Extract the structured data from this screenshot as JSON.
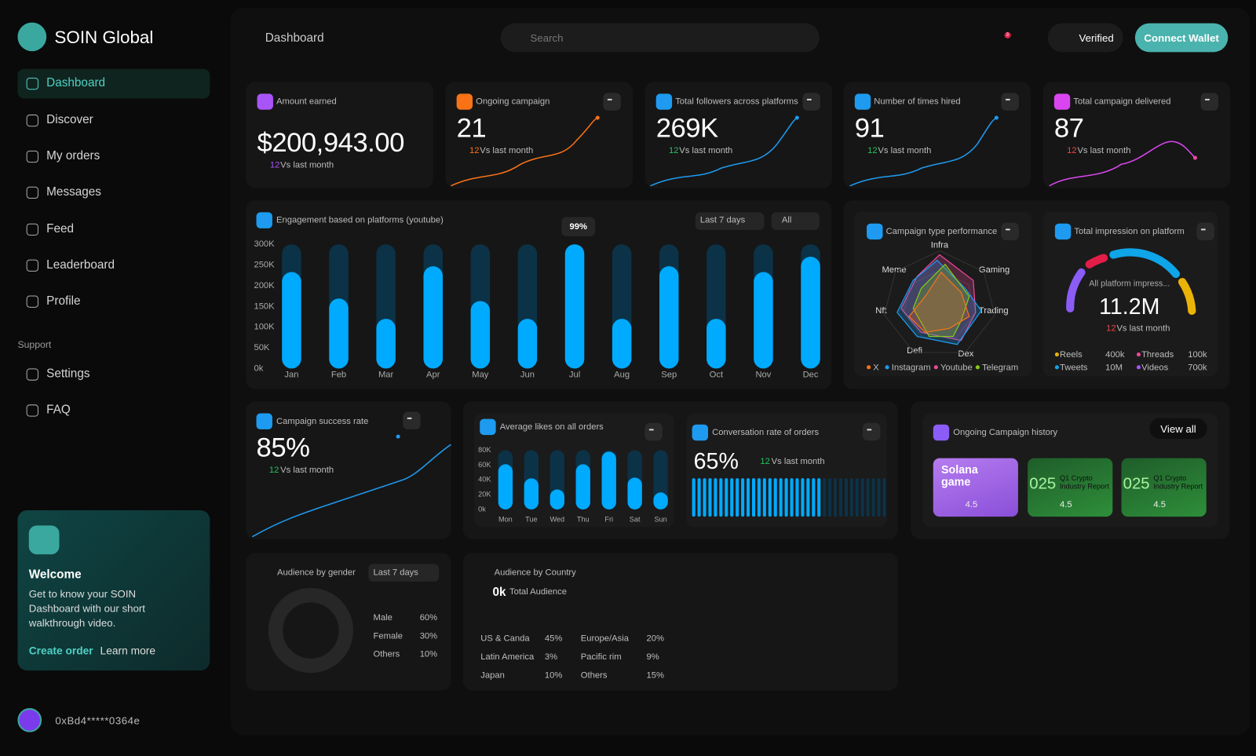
{
  "sidebar": {
    "brand": "SOIN Global",
    "nav": [
      "Dashboard",
      "Discover",
      "My orders",
      "Messages",
      "Feed",
      "Leaderboard",
      "Profile"
    ],
    "support_heading": "Support",
    "support": [
      "Settings",
      "FAQ"
    ],
    "welcome": {
      "title": "Welcome",
      "text": "Get to know your SOIN Dashboard with our short walkthrough video.",
      "primary": "Create order",
      "secondary": "Learn more"
    },
    "wallet": "0xBd4*****0364e"
  },
  "header": {
    "breadcrumb": "Dashboard",
    "search": "Search",
    "notifications": "3",
    "verified": "Verified",
    "connect": "Connect Wallet"
  },
  "stats": [
    {
      "label": "Amount earned",
      "value": "$200,943.00",
      "change": "12",
      "note": "Vs last month"
    },
    {
      "label": "Ongoing campaign",
      "value": "21",
      "change": "12",
      "note": "Vs last month"
    },
    {
      "label": "Total followers across platforms",
      "value": "269K",
      "change": "12",
      "note": "Vs last month"
    },
    {
      "label": "Number of times hired",
      "value": "91",
      "change": "12",
      "note": "Vs last month"
    },
    {
      "label": "Total campaign delivered",
      "value": "87",
      "change": "12",
      "note": "Vs last month"
    }
  ],
  "engagement": {
    "filters": [
      "Last 7 days",
      "All"
    ],
    "tooltip": "99%"
  },
  "chart_data": [
    {
      "type": "bar",
      "title": "Engagement based on platforms (youtube)",
      "color": "#00aaff",
      "track_color": "#0c3247",
      "categories": [
        "Jan",
        "Feb",
        "Mar",
        "Apr",
        "May",
        "Jun",
        "Jul",
        "Aug",
        "Sep",
        "Oct",
        "Nov",
        "Dec"
      ],
      "values": [
        233000,
        169000,
        120000,
        247000,
        163000,
        120000,
        300000,
        120000,
        247000,
        120000,
        233000,
        270000
      ],
      "ylim": [
        0,
        300000
      ],
      "yticks": [
        {
          "value": 0,
          "label": "0k"
        },
        {
          "value": 50000,
          "label": "50K"
        },
        {
          "value": 100000,
          "label": "100K"
        },
        {
          "value": 150000,
          "label": "150K"
        },
        {
          "value": 200000,
          "label": "200K"
        },
        {
          "value": 250000,
          "label": "250K"
        },
        {
          "value": 300000,
          "label": "300K"
        }
      ]
    },
    {
      "type": "bar",
      "title": "Average likes on all orders",
      "color": "#00aaff",
      "track_color": "#0c3247",
      "categories": [
        "Mon",
        "Tue",
        "Wed",
        "Thu",
        "Fri",
        "Sat",
        "Sun"
      ],
      "values": [
        61000,
        42000,
        27000,
        61000,
        78000,
        43000,
        23000
      ],
      "ylim": [
        0,
        80000
      ],
      "yticks": [
        {
          "value": 0,
          "label": "0k"
        },
        {
          "value": 20000,
          "label": "20K"
        },
        {
          "value": 40000,
          "label": "40K"
        },
        {
          "value": 60000,
          "label": "60K"
        },
        {
          "value": 80000,
          "label": "80K"
        }
      ]
    }
  ],
  "campaign_type": {
    "title": "Campaign type performance",
    "axes": [
      "Infra",
      "Gaming",
      "Trading",
      "Dex",
      "Defi",
      "Nft",
      "Meme"
    ],
    "legend": [
      "X",
      "Instagram",
      "Youtube",
      "Telegram"
    ]
  },
  "impression": {
    "title": "Total impression on platform",
    "gauge_label": "All platform impress...",
    "value": "11.2M",
    "change": "12",
    "note": "Vs last month",
    "breakdown": [
      {
        "name": "Reels",
        "value": "400k"
      },
      {
        "name": "Threads",
        "value": "100k"
      },
      {
        "name": "Tweets",
        "value": "10M"
      },
      {
        "name": "Videos",
        "value": "700k"
      }
    ]
  },
  "success_rate": {
    "title": "Campaign success rate",
    "value": "85%",
    "change": "12",
    "note": "Vs last month"
  },
  "conversion": {
    "title": "Conversation rate of orders",
    "value": "65%",
    "change": "12",
    "note": "Vs last month"
  },
  "history": {
    "title": "Ongoing Campaign history",
    "action": "View all",
    "cards": [
      {
        "title": "Solana game",
        "rating": "4.5"
      },
      {
        "year": "025",
        "title": "Q1 Crypto Industry Report",
        "rating": "4.5"
      },
      {
        "year": "025",
        "title": "Q1 Crypto Industry Report",
        "rating": "4.5"
      }
    ]
  },
  "gender": {
    "title": "Audience by gender",
    "filter": "Last 7 days",
    "rows": [
      {
        "name": "Male",
        "value": "60%"
      },
      {
        "name": "Female",
        "value": "30%"
      },
      {
        "name": "Others",
        "value": "10%"
      }
    ]
  },
  "country": {
    "title": "Audience by Country",
    "total": "0k",
    "total_note": "Total Audience",
    "rows": [
      {
        "name": "US & Canda",
        "value": "45%"
      },
      {
        "name": "Europe/Asia",
        "value": "20%"
      },
      {
        "name": "Latin America",
        "value": "3%"
      },
      {
        "name": "Pacific rim",
        "value": "9%"
      },
      {
        "name": "Japan",
        "value": "10%"
      },
      {
        "name": "Others",
        "value": "15%"
      }
    ]
  }
}
